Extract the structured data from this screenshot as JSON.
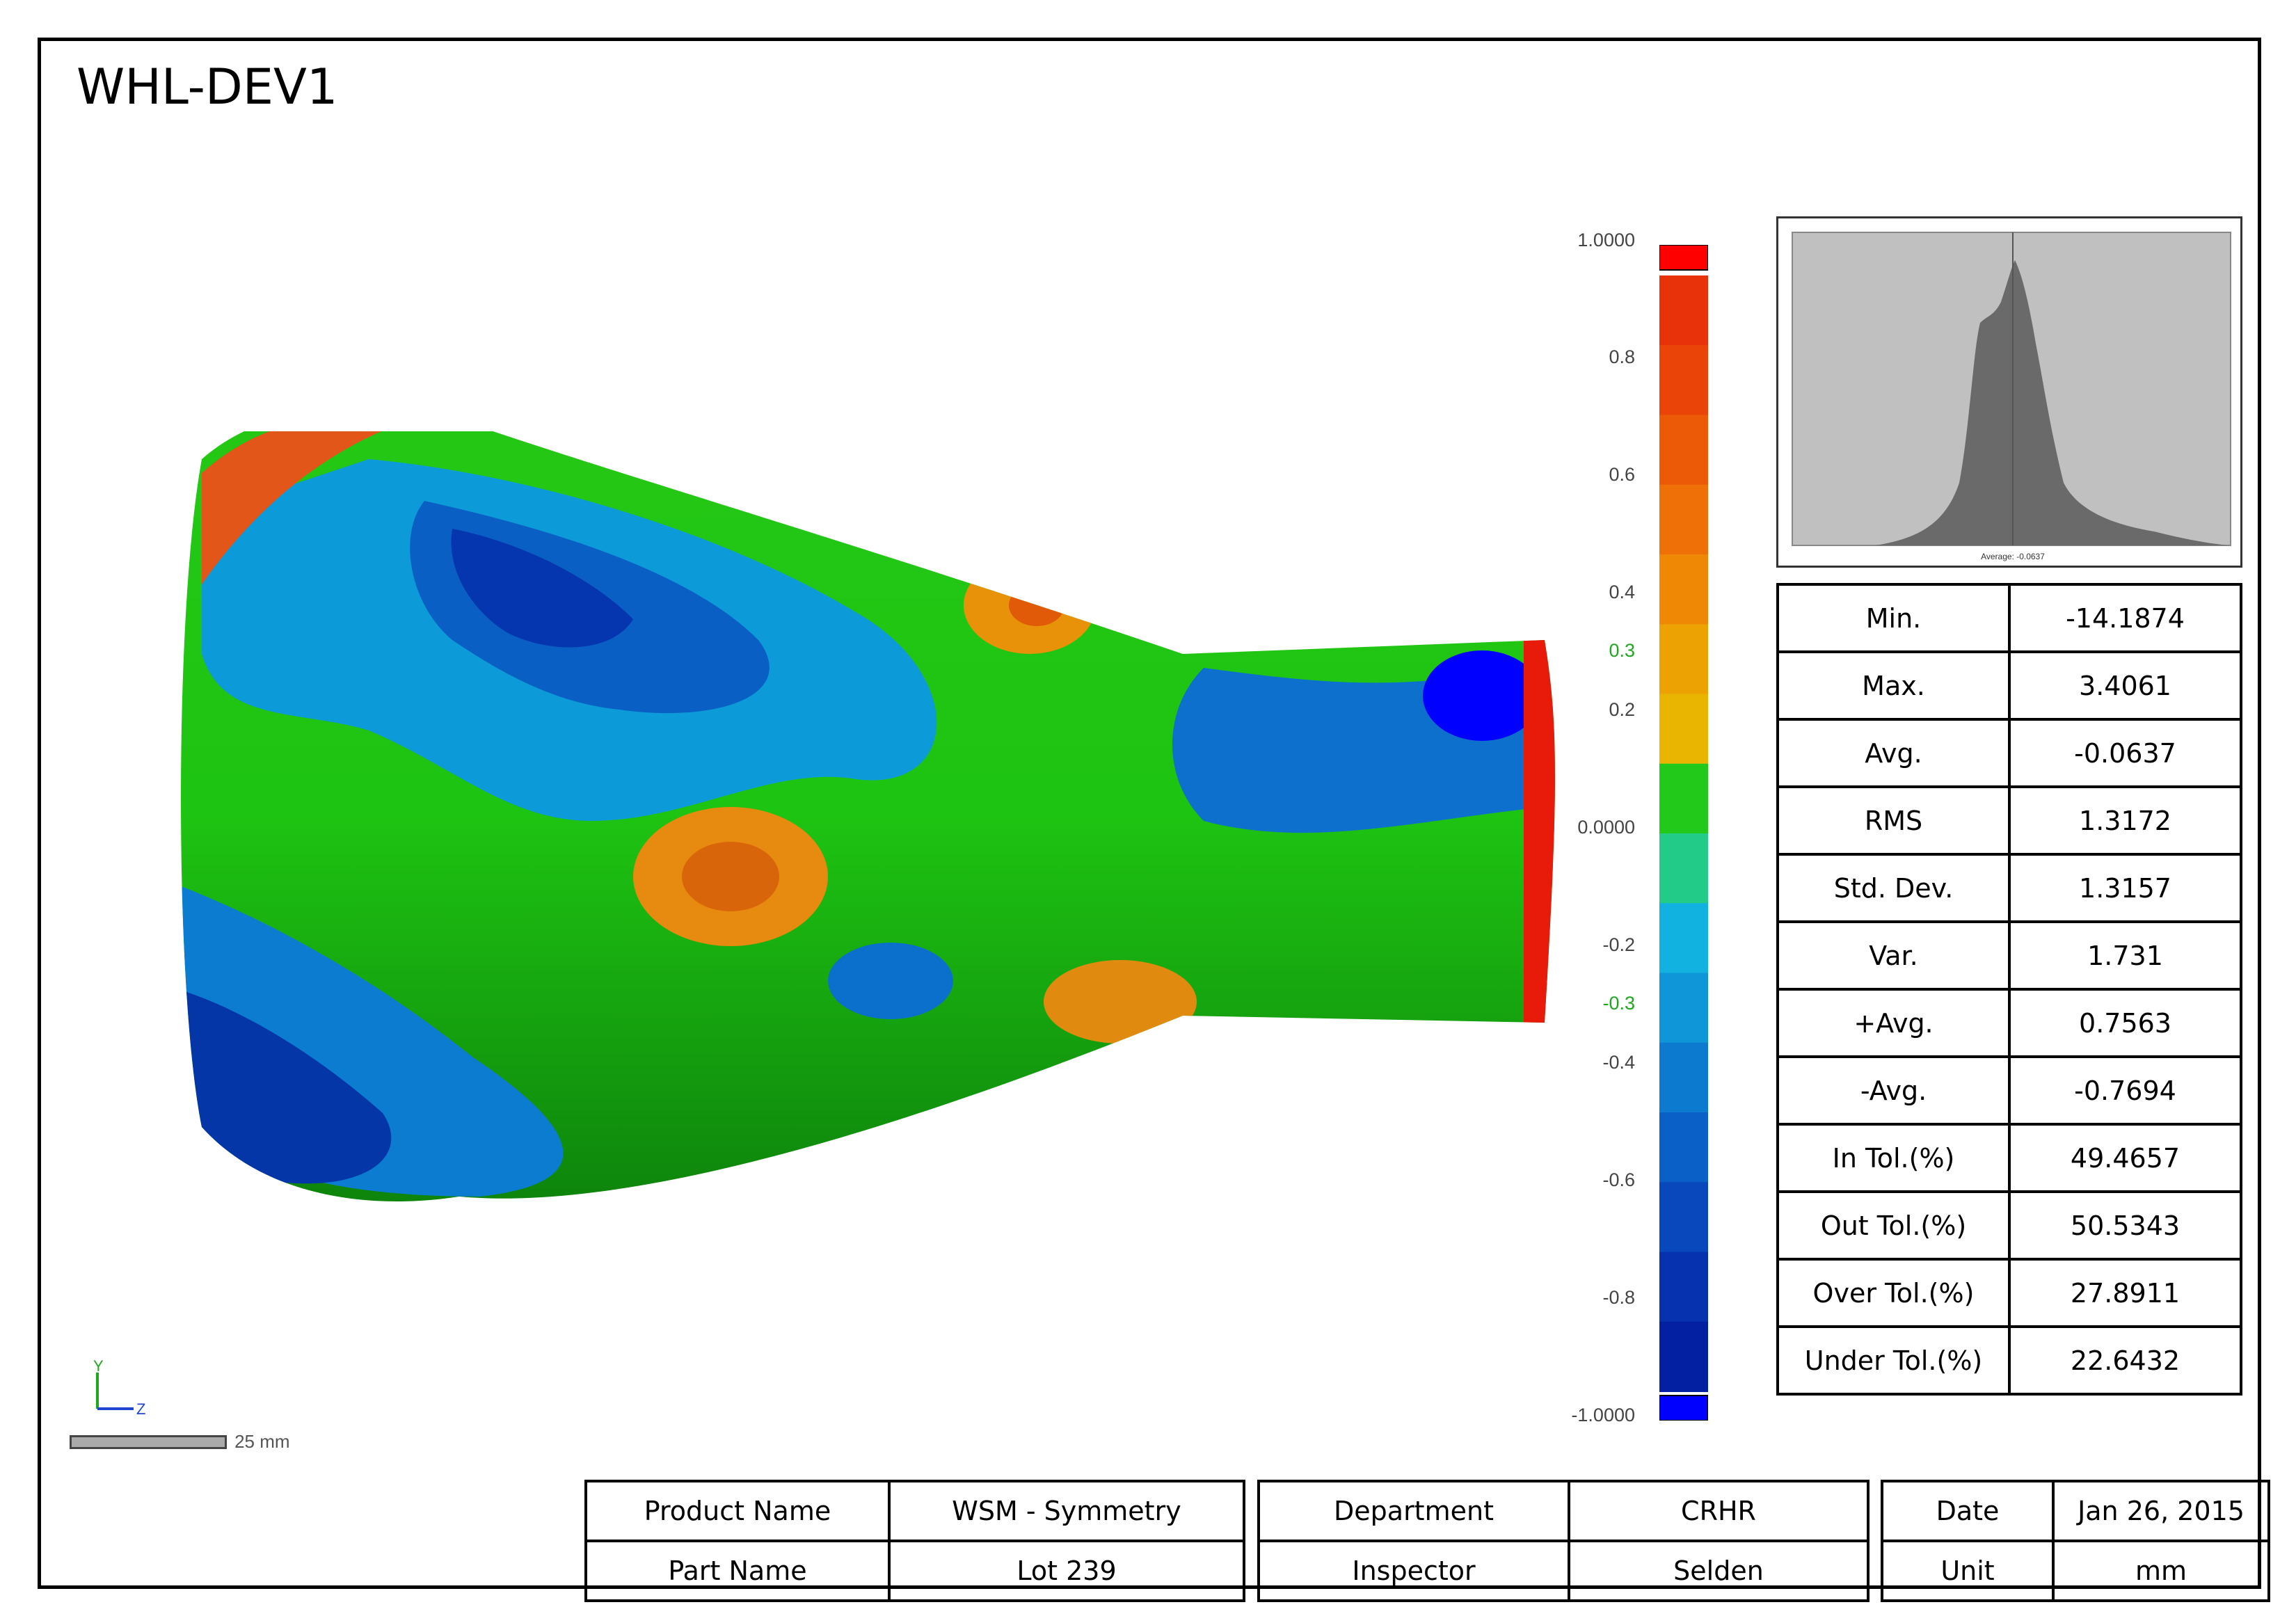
{
  "header": {
    "title": "WHL-DEV1"
  },
  "colorbar": {
    "ticks": [
      "1.0000",
      "0.8",
      "0.6",
      "0.4",
      "0.3",
      "0.2",
      "0.0000",
      "-0.2",
      "-0.3",
      "-0.4",
      "-0.6",
      "-0.8",
      "-1.0000"
    ],
    "colors": [
      "#e8320a",
      "#ea4409",
      "#ec5a08",
      "#ee7006",
      "#ee8805",
      "#eca202",
      "#e9b500",
      "#22c81a",
      "#22cc88",
      "#11b2e0",
      "#0f96d8",
      "#0c7ace",
      "#0a60c6",
      "#0848bc",
      "#0632b0",
      "#0420a2"
    ],
    "over_color": "#ff0000",
    "under_color": "#0000ff"
  },
  "histogram": {
    "avg_label": "Average: -0.0637"
  },
  "stats": [
    {
      "label": "Min.",
      "value": "-14.1874"
    },
    {
      "label": "Max.",
      "value": "3.4061"
    },
    {
      "label": "Avg.",
      "value": "-0.0637"
    },
    {
      "label": "RMS",
      "value": "1.3172"
    },
    {
      "label": "Std. Dev.",
      "value": "1.3157"
    },
    {
      "label": "Var.",
      "value": "1.731"
    },
    {
      "label": "+Avg.",
      "value": "0.7563"
    },
    {
      "label": "-Avg.",
      "value": "-0.7694"
    },
    {
      "label": "In Tol.(%)",
      "value": "49.4657"
    },
    {
      "label": "Out Tol.(%)",
      "value": "50.5343"
    },
    {
      "label": "Over Tol.(%)",
      "value": "27.8911"
    },
    {
      "label": "Under Tol.(%)",
      "value": "22.6432"
    }
  ],
  "info": {
    "product_name_label": "Product Name",
    "product_name_value": "WSM - Symmetry",
    "part_name_label": "Part Name",
    "part_name_value": "Lot 239",
    "department_label": "Department",
    "department_value": "CRHR",
    "inspector_label": "Inspector",
    "inspector_value": "Selden",
    "date_label": "Date",
    "date_value": "Jan 26, 2015",
    "unit_label": "Unit",
    "unit_value": "mm"
  },
  "axes": {
    "y": "Y",
    "z": "Z"
  },
  "scalebar": {
    "label": "25 mm"
  }
}
